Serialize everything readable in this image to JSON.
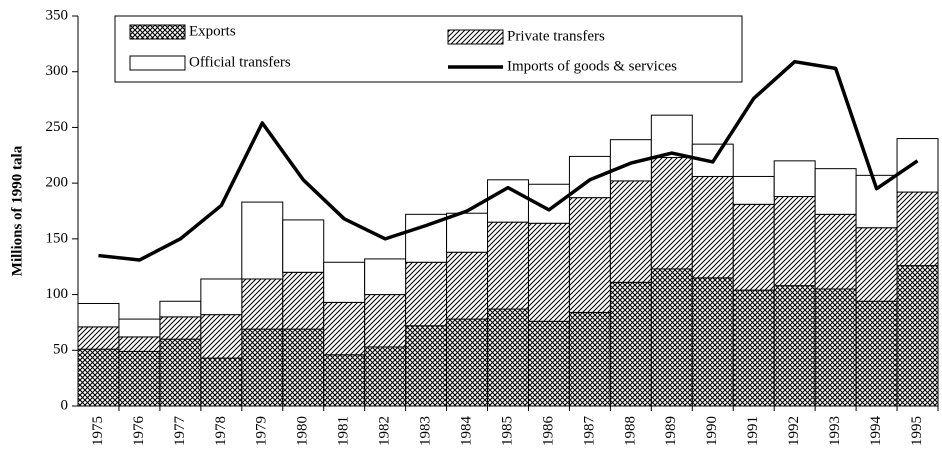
{
  "chart_data": {
    "type": "stacked_bar",
    "y_label": "Millions of 1990 tala",
    "categories": [
      "1975",
      "1976",
      "1977",
      "1978",
      "1979",
      "1980",
      "1981",
      "1982",
      "1983",
      "1984",
      "1985",
      "1986",
      "1987",
      "1988",
      "1989",
      "1990",
      "1991",
      "1992",
      "1993",
      "1994",
      "1995"
    ],
    "series": [
      {
        "name": "Exports",
        "type": "bar",
        "pattern": "crosshatch",
        "color": "#000000",
        "values": [
          51,
          49,
          60,
          43,
          69,
          69,
          46,
          53,
          72,
          78,
          87,
          76,
          84,
          111,
          123,
          115,
          104,
          108,
          105,
          94,
          126
        ]
      },
      {
        "name": "Private transfers",
        "type": "bar",
        "pattern": "diagonal",
        "color": "#000000",
        "values": [
          20,
          13,
          20,
          39,
          45,
          51,
          47,
          47,
          57,
          60,
          78,
          88,
          103,
          91,
          100,
          91,
          77,
          80,
          67,
          66,
          66
        ]
      },
      {
        "name": "Official transfers",
        "type": "bar",
        "pattern": "none",
        "color": "#000000",
        "values": [
          21,
          16,
          14,
          32,
          69,
          47,
          36,
          32,
          43,
          35,
          38,
          35,
          37,
          37,
          38,
          29,
          25,
          32,
          41,
          47,
          48
        ]
      },
      {
        "name": "Imports of goods & services",
        "type": "line",
        "color": "#000000",
        "values": [
          135,
          131,
          150,
          180,
          254,
          203,
          168,
          150,
          162,
          175,
          196,
          176,
          203,
          218,
          227,
          219,
          276,
          309,
          303,
          195,
          220
        ]
      }
    ],
    "ylim": [
      0,
      350
    ],
    "yticks": [
      0,
      50,
      100,
      150,
      200,
      250,
      300,
      350
    ],
    "grid": false,
    "legend": "top"
  }
}
